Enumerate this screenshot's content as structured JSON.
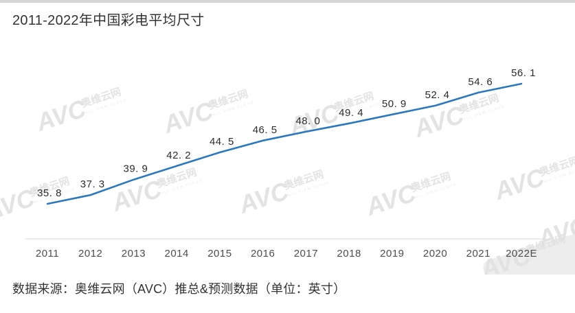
{
  "page": {
    "title": "2011-2022年中国彩电平均尺寸",
    "source_note": "数据来源：奥维云网（AVC）推总&预测数据（单位：英寸）"
  },
  "watermark": {
    "logo": "AVC",
    "name": "奥维云网",
    "subtitle": "ALL VIEW CLOUD"
  },
  "chart_data": {
    "type": "line",
    "title": "2011-2022年中国彩电平均尺寸",
    "categories": [
      "2011",
      "2012",
      "2013",
      "2014",
      "2015",
      "2016",
      "2017",
      "2018",
      "2019",
      "2020",
      "2021",
      "2022E"
    ],
    "values": [
      35.8,
      37.3,
      39.9,
      42.2,
      44.5,
      46.5,
      48.0,
      49.4,
      50.9,
      52.4,
      54.6,
      56.1
    ],
    "point_labels": [
      "35. 8",
      "37. 3",
      "39. 9",
      "42. 2",
      "44. 5",
      "46. 5",
      "48. 0",
      "49. 4",
      "50. 9",
      "52. 4",
      "54. 6",
      "56. 1"
    ],
    "unit": "英寸",
    "xlabel": "",
    "ylabel": "",
    "ylim": [
      34,
      58
    ],
    "grid": false,
    "legend": false,
    "line_color": "#2b78bd",
    "label_color": "#2b2b2b",
    "tick_color": "#4d4d4d",
    "axis_color": "#d9d9d9",
    "watermark_color": "#e1e1e1"
  }
}
